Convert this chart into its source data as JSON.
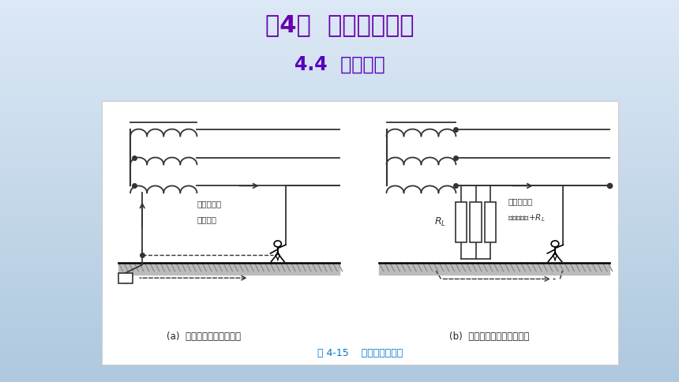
{
  "title1": "第4章  三相交流电路",
  "title2": "4.4  安全用电",
  "title1_color": "#6600aa",
  "title2_color": "#5500bb",
  "caption_a": "(a)  中性点接地的单极触电",
  "caption_b": "(b)  中性点不接地的单极触电",
  "fig_caption": "图 4-15    单极触电示意图",
  "fig_caption_color": "#0077cc",
  "panel_bg": "#f2f2f2",
  "bg_top": "#dce8f5",
  "bg_bottom": "#aec8de",
  "line_color": "#333333",
  "hatch_color": "#999999"
}
